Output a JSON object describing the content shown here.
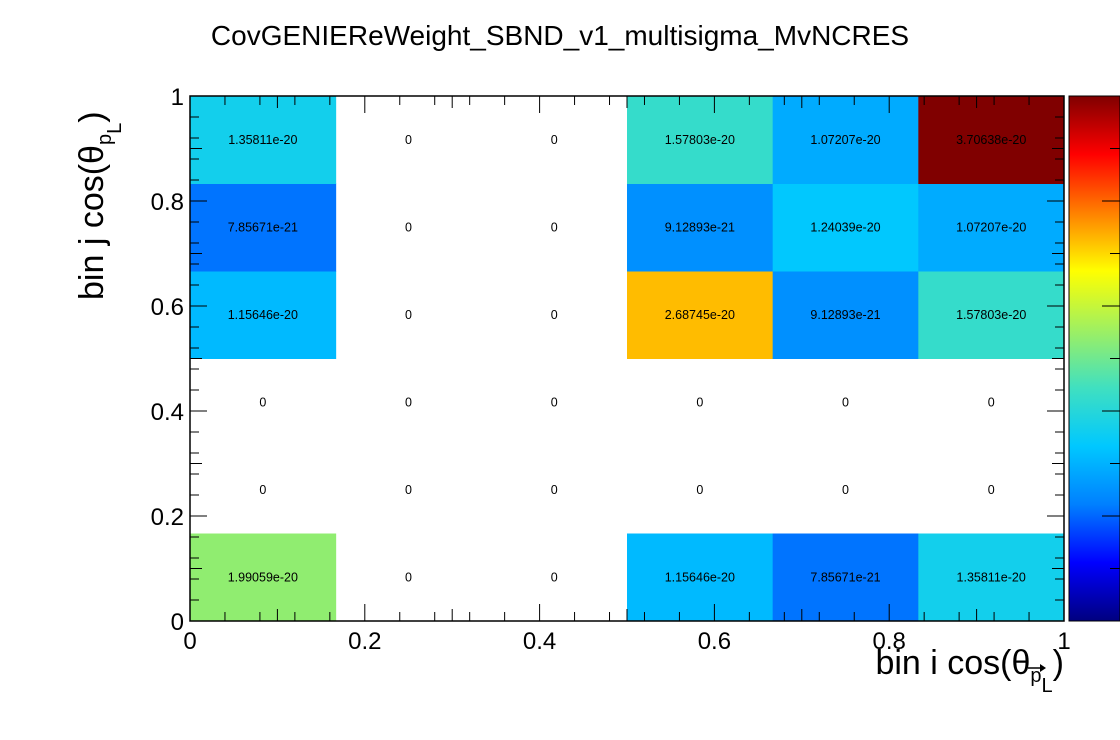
{
  "chart_data": {
    "type": "heatmap",
    "title": "CovGENIEReWeight_SBND_v1_multisigma_MvNCRES",
    "xlabel": {
      "prefix": "bin i cos(θ",
      "sub": "p",
      "sub2": "L",
      "suffix": ")"
    },
    "ylabel": {
      "prefix": "bin j cos(θ",
      "sub": "p",
      "sub2": "L",
      "suffix": ")"
    },
    "xlim": [
      0,
      1
    ],
    "ylim": [
      0,
      1
    ],
    "x_ticks": [
      "0",
      "0.2",
      "0.4",
      "0.6",
      "0.8",
      "1"
    ],
    "y_ticks": [
      "0",
      "0.2",
      "0.4",
      "0.6",
      "0.8",
      "1"
    ],
    "nx": 6,
    "ny": 6,
    "values": [
      [
        1.99059e-20,
        0,
        0,
        1.15646e-20,
        7.85671e-21,
        1.35811e-20
      ],
      [
        0,
        0,
        0,
        0,
        0,
        0
      ],
      [
        0,
        0,
        0,
        0,
        0,
        0
      ],
      [
        1.15646e-20,
        0,
        0,
        2.68745e-20,
        9.12893e-21,
        1.57803e-20
      ],
      [
        7.85671e-21,
        0,
        0,
        9.12893e-21,
        1.24039e-20,
        1.07207e-20
      ],
      [
        1.35811e-20,
        0,
        0,
        1.57803e-20,
        1.07207e-20,
        3.70638e-20
      ]
    ],
    "labels": [
      [
        "1.99059e-20",
        "0",
        "0",
        "1.15646e-20",
        "7.85671e-21",
        "1.35811e-20"
      ],
      [
        "0",
        "0",
        "0",
        "0",
        "0",
        "0"
      ],
      [
        "0",
        "0",
        "0",
        "0",
        "0",
        "0"
      ],
      [
        "1.15646e-20",
        "0",
        "0",
        "2.68745e-20",
        "9.12893e-21",
        "1.57803e-20"
      ],
      [
        "7.85671e-21",
        "0",
        "0",
        "9.12893e-21",
        "1.24039e-20",
        "1.07207e-20"
      ],
      [
        "1.35811e-20",
        "0",
        "0",
        "1.57803e-20",
        "1.07207e-20",
        "3.70638e-20"
      ]
    ],
    "zmin": 0,
    "zmax": 3.70638e-20,
    "colormap": [
      "#00007f",
      "#0000ff",
      "#0080ff",
      "#00c8ff",
      "#40e0c0",
      "#a0f060",
      "#ffff00",
      "#ff8000",
      "#ff0000",
      "#800000"
    ],
    "grid": false,
    "legend": "colorbar-right"
  }
}
